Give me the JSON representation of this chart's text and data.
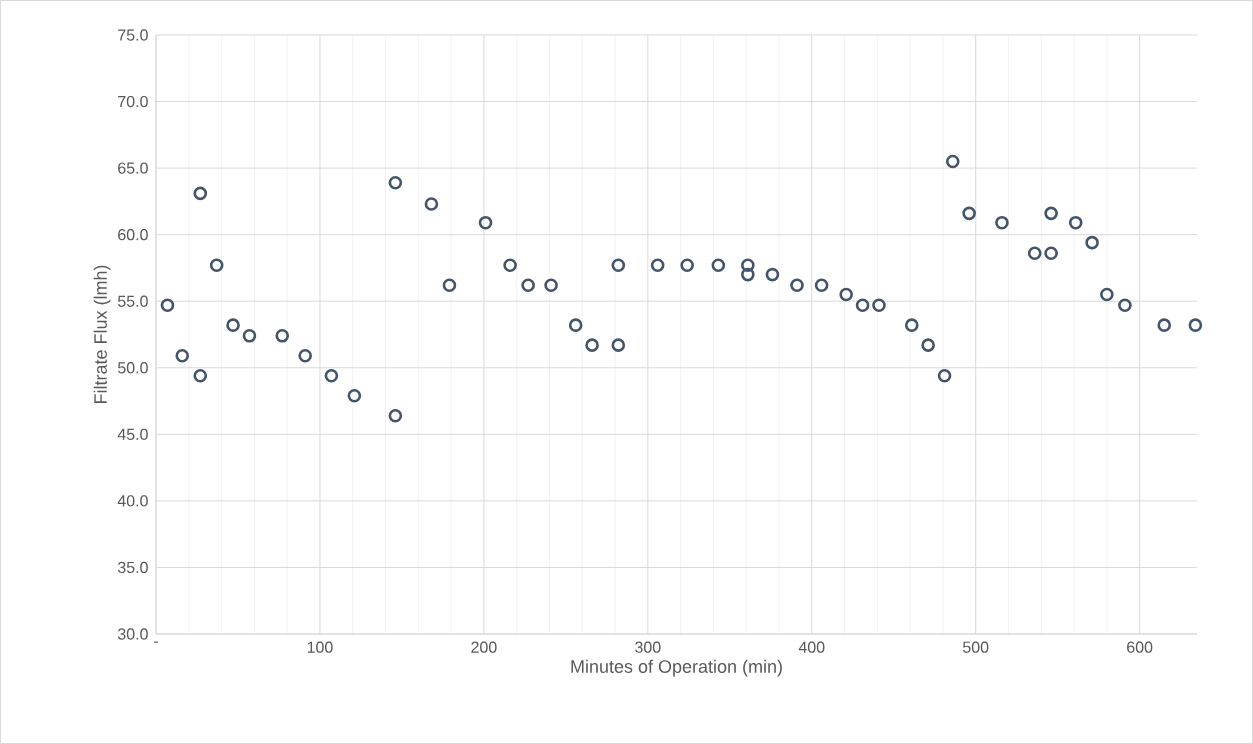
{
  "chart_data": {
    "type": "scatter",
    "xlabel": "Minutes of Operation (min)",
    "ylabel": "Filtrate Flux (lmh)",
    "x": [
      7,
      16,
      27,
      27,
      37,
      47,
      57,
      77,
      91,
      107,
      121,
      146,
      146,
      168,
      179,
      201,
      216,
      227,
      241,
      256,
      266,
      282,
      282,
      306,
      324,
      343,
      361,
      361,
      376,
      391,
      406,
      421,
      431,
      441,
      461,
      471,
      481,
      486,
      496,
      516,
      536,
      546,
      546,
      561,
      571,
      580,
      591,
      615,
      634
    ],
    "values": [
      54.7,
      50.9,
      49.4,
      63.1,
      57.7,
      53.2,
      52.4,
      52.4,
      50.9,
      49.4,
      47.9,
      46.4,
      63.9,
      62.3,
      56.2,
      60.9,
      57.7,
      56.2,
      56.2,
      53.2,
      51.7,
      51.7,
      57.7,
      57.7,
      57.7,
      57.7,
      57.7,
      57.0,
      57.0,
      56.2,
      56.2,
      55.5,
      54.7,
      54.7,
      53.2,
      51.7,
      49.4,
      65.5,
      61.6,
      60.9,
      58.6,
      61.6,
      58.6,
      60.9,
      59.4,
      55.5,
      54.7,
      53.2,
      53.2
    ],
    "color": "#44546a",
    "marker": "circle",
    "xlim": [
      0,
      635
    ],
    "ylim": [
      30,
      75
    ],
    "xticks": [
      {
        "value": 0,
        "label": "-"
      },
      100,
      200,
      300,
      400,
      500,
      600
    ],
    "yticks": [
      {
        "value": 30,
        "label": "30.0"
      },
      {
        "value": 35,
        "label": "35.0"
      },
      {
        "value": 40,
        "label": "40.0"
      },
      {
        "value": 45,
        "label": "45.0"
      },
      {
        "value": 50,
        "label": "50.0"
      },
      {
        "value": 55,
        "label": "55.0"
      },
      {
        "value": 60,
        "label": "60.0"
      },
      {
        "value": 65,
        "label": "65.0"
      },
      {
        "value": 70,
        "label": "70.0"
      },
      {
        "value": 75,
        "label": "75.0"
      }
    ],
    "grid": true
  }
}
